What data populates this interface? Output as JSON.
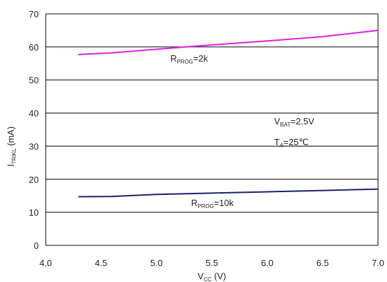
{
  "chart_data": {
    "type": "line",
    "xlabel": {
      "main": "V",
      "sub": "CC",
      "rest": " (V)"
    },
    "ylabel": {
      "main": "I",
      "sub": "TRIKL",
      "rest": " (mA)"
    },
    "xlim": [
      4.0,
      7.0
    ],
    "ylim": [
      0,
      70
    ],
    "x_ticks": [
      "4.0",
      "4.5",
      "5.0",
      "5.5",
      "6.0",
      "6.5",
      "7.0"
    ],
    "y_ticks": [
      "0",
      "10",
      "20",
      "30",
      "40",
      "50",
      "60",
      "70"
    ],
    "grid": "horizontal",
    "series": [
      {
        "color": "#e01ee0",
        "label": {
          "main": "R",
          "sub": "PROG",
          "rest": "=2k"
        },
        "x": [
          4.3,
          4.6,
          5.0,
          5.5,
          6.0,
          6.5,
          7.0
        ],
        "y": [
          57.7,
          58.2,
          59.3,
          60.6,
          61.8,
          63.1,
          65.0
        ]
      },
      {
        "color": "#1a1f6b",
        "label": {
          "main": "R",
          "sub": "PROG",
          "rest": "=10k"
        },
        "x": [
          4.3,
          4.6,
          5.0,
          5.5,
          6.0,
          6.5,
          7.0
        ],
        "y": [
          14.7,
          14.8,
          15.4,
          15.8,
          16.2,
          16.6,
          17.0
        ]
      }
    ],
    "annotations": [
      {
        "main": "V",
        "sub": "BAT",
        "rest": "=2.5V"
      },
      {
        "main": "T",
        "sub": "A",
        "rest": "=25℃"
      }
    ]
  }
}
